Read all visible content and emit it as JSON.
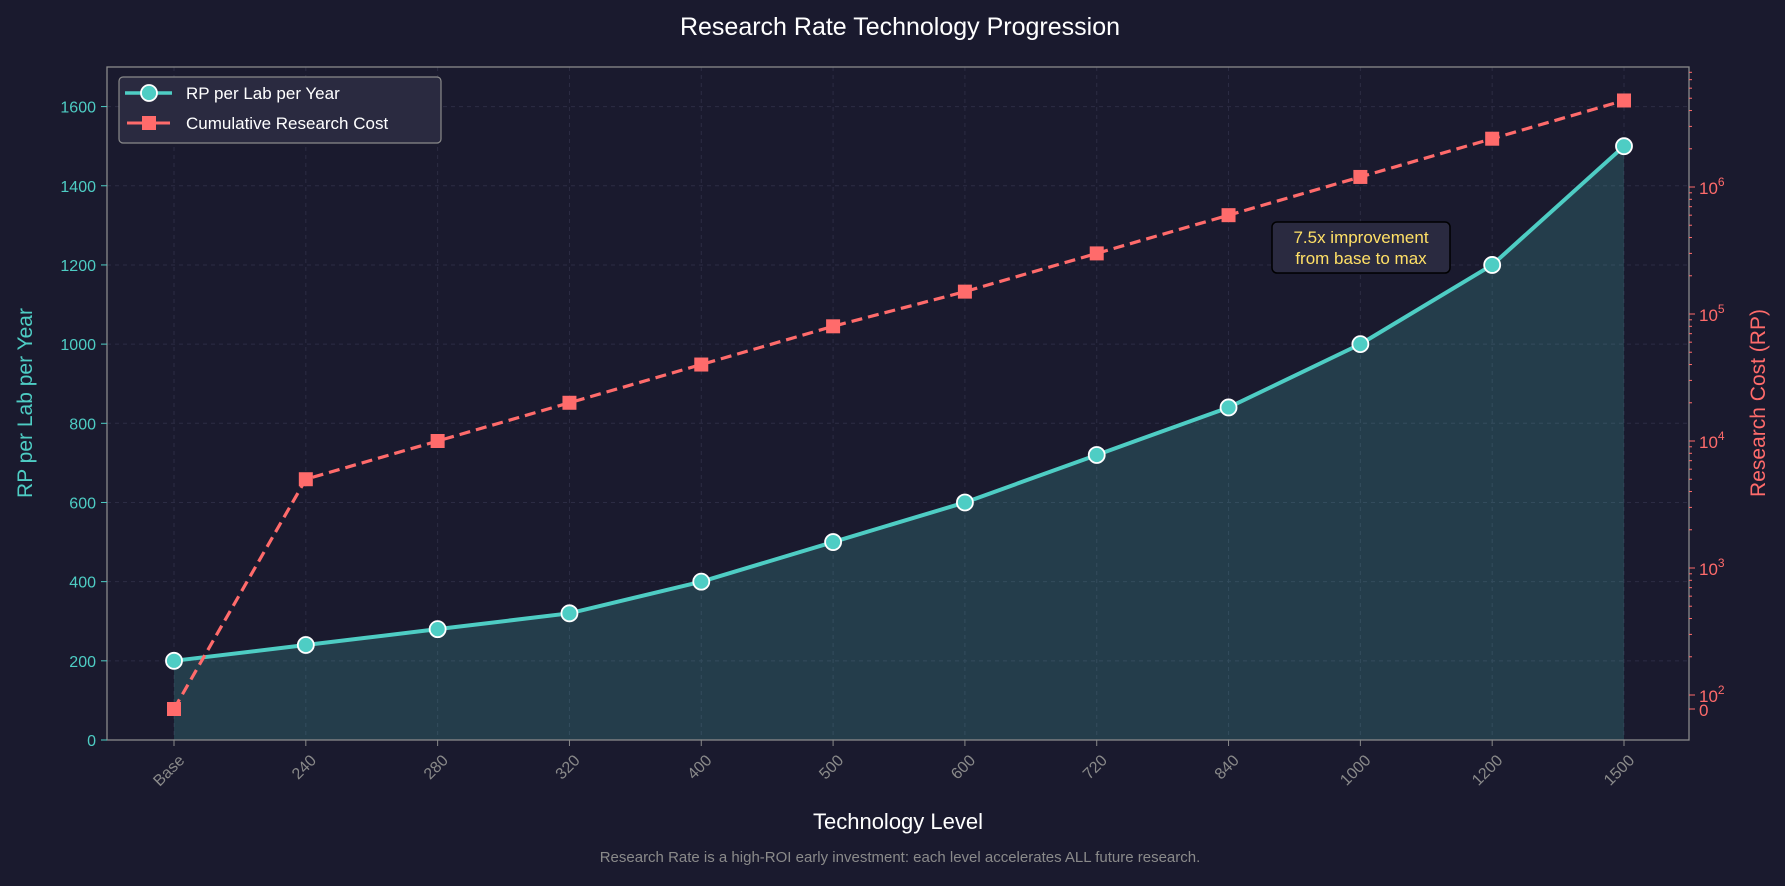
{
  "chart_data": {
    "type": "line",
    "title": "Research Rate Technology Progression",
    "xlabel": "Technology Level",
    "ylabel": "RP per Lab per Year",
    "y2label": "Research Cost (RP)",
    "footnote": "Research Rate is a high-ROI early investment: each level accelerates ALL future research.",
    "categories": [
      "Base",
      "240",
      "280",
      "320",
      "400",
      "500",
      "600",
      "720",
      "840",
      "1000",
      "1200",
      "1500"
    ],
    "ylim": [
      0,
      1700
    ],
    "yticks": [
      "0",
      "200",
      "400",
      "600",
      "800",
      "1000",
      "1200",
      "1400",
      "1600"
    ],
    "y2scale": "symlog",
    "y2ticks": [
      {
        "value": 0,
        "base": "0",
        "exp": ""
      },
      {
        "value": 100,
        "base": "10",
        "exp": "2"
      },
      {
        "value": 1000,
        "base": "10",
        "exp": "3"
      },
      {
        "value": 10000,
        "base": "10",
        "exp": "4"
      },
      {
        "value": 100000,
        "base": "10",
        "exp": "5"
      },
      {
        "value": 1000000,
        "base": "10",
        "exp": "6"
      }
    ],
    "grid": true,
    "legend_position": "top-left",
    "series": [
      {
        "name": "RP per Lab per Year",
        "axis": "left",
        "color": "#4ecdc4",
        "style": "solid",
        "marker": "circle",
        "values": [
          200,
          240,
          280,
          320,
          400,
          500,
          600,
          720,
          840,
          1000,
          1200,
          1500
        ]
      },
      {
        "name": "Cumulative Research Cost",
        "axis": "right",
        "color": "#ff6b6b",
        "style": "dashed",
        "marker": "square",
        "values": [
          0,
          5000,
          10000,
          20000,
          40000,
          80000,
          150000,
          300000,
          600000,
          1200000,
          2400000,
          4800000
        ]
      }
    ],
    "annotation": {
      "text_line1": "7.5x improvement",
      "text_line2": "from base to max",
      "color": "#ffe066"
    }
  }
}
